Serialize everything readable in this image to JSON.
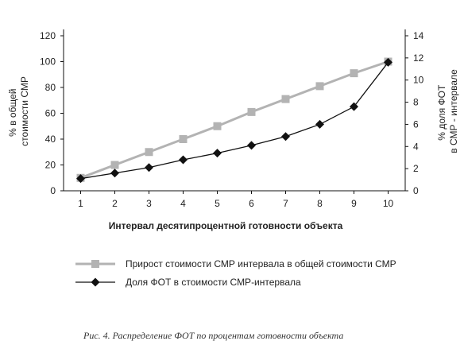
{
  "chart_data": {
    "type": "line",
    "title": "",
    "x": [
      1,
      2,
      3,
      4,
      5,
      6,
      7,
      8,
      9,
      10
    ],
    "xlabel": "Интервал десятипроцентной готовности объекта",
    "ylabel_left": [
      "% в общей",
      "стоимости СМР"
    ],
    "ylabel_right": [
      "% доля ФОТ",
      "в СМР - интервале"
    ],
    "ylim_left": [
      0,
      120
    ],
    "yticks_left": [
      0,
      20,
      40,
      60,
      80,
      100,
      120
    ],
    "ylim_right": [
      0,
      14
    ],
    "yticks_right": [
      0,
      2,
      4,
      6,
      8,
      10,
      12,
      14
    ],
    "grid": false,
    "legend_position": "bottom",
    "series": [
      {
        "name": "Прирост стоимости СМР интервала в общей стоимости СМР",
        "axis": "left",
        "color": "#b3b3b3",
        "marker": "square",
        "values": [
          10,
          20,
          30,
          40,
          50,
          61,
          71,
          81,
          91,
          100
        ]
      },
      {
        "name": "Доля ФОТ в стоимости СМР-интервала",
        "axis": "right",
        "color": "#111111",
        "marker": "diamond",
        "values": [
          1.1,
          1.6,
          2.1,
          2.8,
          3.4,
          4.1,
          4.9,
          6.0,
          7.6,
          11.6
        ]
      }
    ]
  },
  "caption": "Рис. 4. Распределение ФОТ по процентам готовности объекта"
}
